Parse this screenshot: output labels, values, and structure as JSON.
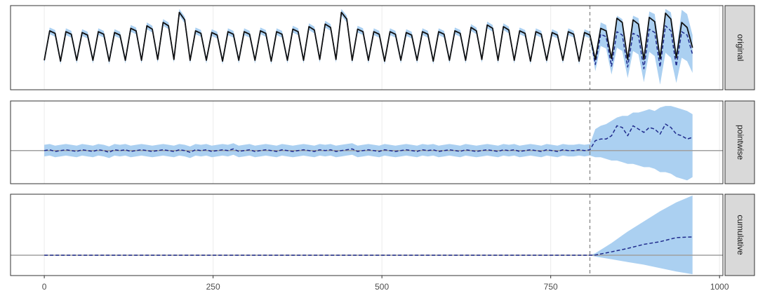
{
  "chart_data": [
    {
      "type": "line",
      "strip": "original",
      "xlim": [
        -50,
        1005
      ],
      "ylim": [
        0,
        10
      ],
      "vline": 808,
      "x": [
        0,
        8,
        16,
        24,
        32,
        40,
        48,
        56,
        64,
        72,
        80,
        88,
        96,
        104,
        112,
        120,
        128,
        136,
        144,
        152,
        160,
        168,
        176,
        184,
        192,
        200,
        208,
        216,
        224,
        232,
        240,
        248,
        256,
        264,
        272,
        280,
        288,
        296,
        304,
        312,
        320,
        328,
        336,
        344,
        352,
        360,
        368,
        376,
        384,
        392,
        400,
        408,
        416,
        424,
        432,
        440,
        448,
        456,
        464,
        472,
        480,
        488,
        496,
        504,
        512,
        520,
        528,
        536,
        544,
        552,
        560,
        568,
        576,
        584,
        592,
        600,
        608,
        616,
        624,
        632,
        640,
        648,
        656,
        664,
        672,
        680,
        688,
        696,
        704,
        712,
        720,
        728,
        736,
        744,
        752,
        760,
        768,
        776,
        784,
        792,
        800,
        808,
        816,
        824,
        832,
        840,
        848,
        856,
        864,
        872,
        880,
        888,
        896,
        904,
        912,
        920,
        928,
        936,
        944,
        952,
        960
      ],
      "band": {
        "color": "#abd0f1",
        "lower": [
          3.1,
          6.6,
          6.3,
          3.0,
          6.5,
          6.2,
          3.1,
          6.4,
          6.1,
          3.1,
          6.5,
          6.2,
          3.0,
          6.4,
          6.1,
          3.1,
          6.9,
          6.6,
          3.1,
          7.2,
          6.8,
          3.2,
          7.6,
          7.2,
          3.2,
          8.8,
          7.9,
          3.1,
          6.6,
          6.3,
          3.1,
          6.4,
          6.1,
          3.0,
          6.5,
          6.2,
          3.1,
          6.5,
          6.2,
          3.1,
          6.6,
          6.3,
          3.0,
          6.5,
          6.2,
          3.1,
          6.8,
          6.5,
          3.1,
          7.1,
          6.7,
          3.2,
          7.4,
          7.0,
          3.2,
          8.8,
          8.0,
          3.1,
          6.8,
          6.5,
          3.1,
          6.5,
          6.2,
          3.0,
          6.5,
          6.2,
          3.1,
          6.4,
          6.1,
          3.1,
          6.5,
          6.2,
          3.0,
          6.5,
          6.2,
          3.1,
          6.6,
          6.3,
          3.1,
          7.0,
          6.6,
          3.2,
          7.3,
          6.9,
          3.1,
          7.1,
          6.7,
          3.1,
          6.6,
          6.3,
          3.0,
          6.5,
          6.2,
          3.1,
          6.4,
          6.1,
          3.1,
          6.5,
          6.2,
          3.0,
          6.4,
          6.1,
          2.2,
          5.2,
          4.9,
          1.8,
          5.0,
          4.6,
          1.4,
          4.6,
          4.2,
          0.9,
          4.5,
          4.0,
          0.6,
          4.4,
          3.8,
          0.8,
          3.8,
          3.4,
          2.0
        ],
        "upper": [
          3.9,
          7.4,
          7.1,
          3.8,
          7.3,
          7.0,
          3.9,
          7.2,
          6.9,
          3.9,
          7.3,
          7.0,
          3.8,
          7.2,
          6.9,
          3.9,
          7.7,
          7.4,
          3.9,
          8.0,
          7.6,
          4.0,
          8.4,
          8.0,
          4.0,
          9.6,
          8.7,
          3.9,
          7.4,
          7.1,
          3.9,
          7.2,
          6.9,
          3.8,
          7.3,
          7.0,
          3.9,
          7.3,
          7.0,
          3.9,
          7.4,
          7.1,
          3.8,
          7.3,
          7.0,
          3.9,
          7.6,
          7.3,
          3.9,
          7.9,
          7.5,
          4.0,
          8.2,
          7.8,
          4.0,
          9.6,
          8.8,
          3.9,
          7.6,
          7.3,
          3.9,
          7.3,
          7.0,
          3.8,
          7.3,
          7.0,
          3.9,
          7.2,
          6.9,
          3.9,
          7.3,
          7.0,
          3.8,
          7.3,
          7.0,
          3.9,
          7.4,
          7.1,
          3.9,
          7.8,
          7.4,
          4.0,
          8.1,
          7.7,
          3.9,
          7.9,
          7.5,
          3.9,
          7.4,
          7.1,
          3.8,
          7.3,
          7.0,
          3.9,
          7.2,
          6.9,
          3.9,
          7.3,
          7.0,
          3.8,
          7.2,
          6.9,
          3.9,
          8.0,
          7.7,
          3.9,
          8.8,
          8.4,
          4.0,
          8.8,
          8.5,
          4.1,
          9.3,
          9.0,
          4.4,
          9.6,
          9.2,
          4.5,
          9.5,
          9.0,
          6.5
        ]
      },
      "series": [
        {
          "color": "#1f2a8c",
          "dash": true,
          "values": [
            3.5,
            7.0,
            6.7,
            3.4,
            6.9,
            6.6,
            3.5,
            6.8,
            6.5,
            3.5,
            6.9,
            6.6,
            3.4,
            6.8,
            6.5,
            3.5,
            7.3,
            7.0,
            3.5,
            7.6,
            7.2,
            3.6,
            8.0,
            7.6,
            3.6,
            9.2,
            8.3,
            3.5,
            7.0,
            6.7,
            3.5,
            6.8,
            6.5,
            3.4,
            6.9,
            6.6,
            3.5,
            6.9,
            6.6,
            3.5,
            7.0,
            6.7,
            3.4,
            6.9,
            6.6,
            3.5,
            7.2,
            6.9,
            3.5,
            7.5,
            7.1,
            3.6,
            7.8,
            7.4,
            3.6,
            9.2,
            8.4,
            3.5,
            7.2,
            6.9,
            3.5,
            6.9,
            6.6,
            3.4,
            6.9,
            6.6,
            3.5,
            6.8,
            6.5,
            3.5,
            6.9,
            6.6,
            3.4,
            6.9,
            6.6,
            3.5,
            7.0,
            6.7,
            3.5,
            7.4,
            7.0,
            3.6,
            7.7,
            7.3,
            3.5,
            7.5,
            7.1,
            3.5,
            7.0,
            6.7,
            3.4,
            6.9,
            6.6,
            3.5,
            6.8,
            6.5,
            3.5,
            6.9,
            6.6,
            3.4,
            6.8,
            6.5,
            3.0,
            6.6,
            6.3,
            2.8,
            6.9,
            6.5,
            2.7,
            6.7,
            6.4,
            2.5,
            7.2,
            6.8,
            2.7,
            7.6,
            7.0,
            2.8,
            6.9,
            6.5,
            4.2
          ]
        },
        {
          "color": "#111111",
          "dash": false,
          "values": [
            3.5,
            7.0,
            6.7,
            3.4,
            6.9,
            6.6,
            3.5,
            6.8,
            6.5,
            3.5,
            6.9,
            6.6,
            3.4,
            6.8,
            6.5,
            3.5,
            7.3,
            7.0,
            3.5,
            7.6,
            7.2,
            3.6,
            8.0,
            7.6,
            3.6,
            9.2,
            8.3,
            3.5,
            7.0,
            6.7,
            3.5,
            6.8,
            6.5,
            3.4,
            6.9,
            6.6,
            3.5,
            6.9,
            6.6,
            3.5,
            7.0,
            6.7,
            3.4,
            6.9,
            6.6,
            3.5,
            7.2,
            6.9,
            3.5,
            7.5,
            7.1,
            3.6,
            7.8,
            7.4,
            3.6,
            9.2,
            8.4,
            3.5,
            7.2,
            6.9,
            3.5,
            6.9,
            6.6,
            3.4,
            6.9,
            6.6,
            3.5,
            6.8,
            6.5,
            3.5,
            6.9,
            6.6,
            3.4,
            6.9,
            6.6,
            3.5,
            7.0,
            6.7,
            3.5,
            7.4,
            7.0,
            3.6,
            7.7,
            7.3,
            3.5,
            7.5,
            7.1,
            3.5,
            7.0,
            6.7,
            3.4,
            6.9,
            6.6,
            3.5,
            6.8,
            6.5,
            3.5,
            6.9,
            6.6,
            3.4,
            6.8,
            6.5,
            3.6,
            7.3,
            7.0,
            3.7,
            8.5,
            8.0,
            3.6,
            8.3,
            7.8,
            3.6,
            8.6,
            8.1,
            3.7,
            9.1,
            8.4,
            3.8,
            8.0,
            7.4,
            5.0
          ]
        }
      ]
    },
    {
      "type": "line",
      "strip": "pointwise",
      "xlim": [
        -50,
        1005
      ],
      "ylim": [
        -2,
        3
      ],
      "vline": 808,
      "hline": 0,
      "x": [
        0,
        8,
        16,
        24,
        32,
        40,
        48,
        56,
        64,
        72,
        80,
        88,
        96,
        104,
        112,
        120,
        128,
        136,
        144,
        152,
        160,
        168,
        176,
        184,
        192,
        200,
        208,
        216,
        224,
        232,
        240,
        248,
        256,
        264,
        272,
        280,
        288,
        296,
        304,
        312,
        320,
        328,
        336,
        344,
        352,
        360,
        368,
        376,
        384,
        392,
        400,
        408,
        416,
        424,
        432,
        440,
        448,
        456,
        464,
        472,
        480,
        488,
        496,
        504,
        512,
        520,
        528,
        536,
        544,
        552,
        560,
        568,
        576,
        584,
        592,
        600,
        608,
        616,
        624,
        632,
        640,
        648,
        656,
        664,
        672,
        680,
        688,
        696,
        704,
        712,
        720,
        728,
        736,
        744,
        752,
        760,
        768,
        776,
        784,
        792,
        800,
        808,
        816,
        824,
        832,
        840,
        848,
        856,
        864,
        872,
        880,
        888,
        896,
        904,
        912,
        920,
        928,
        936,
        944,
        952,
        960
      ],
      "band": {
        "color": "#abd0f1",
        "lower": [
          -0.35,
          -0.3,
          -0.4,
          -0.35,
          -0.3,
          -0.35,
          -0.4,
          -0.3,
          -0.35,
          -0.4,
          -0.3,
          -0.35,
          -0.45,
          -0.3,
          -0.35,
          -0.3,
          -0.4,
          -0.35,
          -0.3,
          -0.35,
          -0.4,
          -0.35,
          -0.3,
          -0.35,
          -0.4,
          -0.3,
          -0.35,
          -0.45,
          -0.3,
          -0.35,
          -0.3,
          -0.4,
          -0.35,
          -0.3,
          -0.35,
          -0.25,
          -0.4,
          -0.35,
          -0.3,
          -0.4,
          -0.35,
          -0.3,
          -0.35,
          -0.4,
          -0.3,
          -0.35,
          -0.4,
          -0.35,
          -0.3,
          -0.35,
          -0.4,
          -0.3,
          -0.35,
          -0.3,
          -0.4,
          -0.35,
          -0.3,
          -0.25,
          -0.4,
          -0.35,
          -0.3,
          -0.35,
          -0.4,
          -0.3,
          -0.35,
          -0.4,
          -0.35,
          -0.3,
          -0.35,
          -0.4,
          -0.3,
          -0.35,
          -0.3,
          -0.4,
          -0.35,
          -0.3,
          -0.35,
          -0.4,
          -0.3,
          -0.35,
          -0.4,
          -0.35,
          -0.3,
          -0.35,
          -0.4,
          -0.3,
          -0.35,
          -0.3,
          -0.4,
          -0.35,
          -0.3,
          -0.35,
          -0.4,
          -0.3,
          -0.35,
          -0.4,
          -0.3,
          -0.35,
          -0.35,
          -0.3,
          -0.35,
          -0.3,
          -0.4,
          -0.4,
          -0.5,
          -0.6,
          -0.6,
          -0.7,
          -0.8,
          -0.8,
          -0.9,
          -1.0,
          -1.0,
          -1.1,
          -1.3,
          -1.3,
          -1.4,
          -1.6,
          -1.7,
          -1.8,
          -1.6
        ],
        "upper": [
          0.35,
          0.4,
          0.3,
          0.35,
          0.4,
          0.35,
          0.3,
          0.4,
          0.35,
          0.3,
          0.4,
          0.35,
          0.25,
          0.4,
          0.35,
          0.4,
          0.3,
          0.35,
          0.4,
          0.35,
          0.3,
          0.35,
          0.4,
          0.35,
          0.3,
          0.4,
          0.35,
          0.25,
          0.4,
          0.35,
          0.4,
          0.3,
          0.35,
          0.4,
          0.35,
          0.45,
          0.3,
          0.35,
          0.4,
          0.3,
          0.35,
          0.4,
          0.35,
          0.3,
          0.4,
          0.35,
          0.3,
          0.35,
          0.4,
          0.35,
          0.3,
          0.4,
          0.35,
          0.4,
          0.3,
          0.35,
          0.4,
          0.45,
          0.3,
          0.35,
          0.4,
          0.35,
          0.3,
          0.4,
          0.35,
          0.3,
          0.35,
          0.4,
          0.35,
          0.3,
          0.4,
          0.35,
          0.4,
          0.3,
          0.35,
          0.4,
          0.35,
          0.3,
          0.4,
          0.35,
          0.3,
          0.35,
          0.4,
          0.35,
          0.3,
          0.4,
          0.35,
          0.4,
          0.3,
          0.35,
          0.4,
          0.35,
          0.3,
          0.4,
          0.35,
          0.3,
          0.4,
          0.35,
          0.35,
          0.4,
          0.35,
          0.4,
          1.3,
          1.5,
          1.6,
          1.8,
          2.0,
          2.1,
          2.1,
          2.3,
          2.3,
          2.4,
          2.5,
          2.4,
          2.6,
          2.7,
          2.7,
          2.6,
          2.5,
          2.4,
          2.2
        ]
      },
      "series": [
        {
          "color": "#1f2a8c",
          "dash": true,
          "values": [
            0,
            0.05,
            -0.05,
            0,
            0.05,
            0,
            -0.05,
            0.05,
            0,
            -0.05,
            0.05,
            0,
            -0.1,
            0.05,
            0,
            0.05,
            -0.05,
            0,
            0.05,
            0,
            -0.05,
            0,
            0.05,
            0,
            -0.05,
            0.05,
            0,
            -0.1,
            0.05,
            0,
            0.05,
            -0.05,
            0,
            0.05,
            0,
            0.1,
            -0.05,
            0,
            0.05,
            -0.05,
            0,
            0.05,
            0,
            -0.05,
            0.05,
            0,
            -0.05,
            0,
            0.05,
            0,
            -0.05,
            0.05,
            0,
            0.05,
            -0.05,
            0,
            0.05,
            0.1,
            -0.05,
            0,
            0.05,
            0,
            -0.05,
            0.05,
            0,
            -0.05,
            0,
            0.05,
            0,
            -0.05,
            0.05,
            0,
            0.05,
            -0.05,
            0,
            0.05,
            0,
            -0.05,
            0.05,
            0,
            -0.05,
            0,
            0.05,
            0,
            -0.05,
            0.05,
            0,
            0.05,
            -0.05,
            0,
            0.05,
            0,
            -0.05,
            0.05,
            0,
            -0.05,
            0.05,
            0,
            0,
            0.05,
            0,
            0.05,
            0.6,
            0.7,
            0.7,
            0.9,
            1.5,
            1.4,
            0.9,
            1.5,
            1.3,
            1.1,
            1.4,
            1.3,
            1.0,
            1.6,
            1.4,
            1.0,
            0.9,
            0.7,
            0.8
          ]
        }
      ]
    },
    {
      "type": "line",
      "strip": "cumulative",
      "xlim": [
        -50,
        1005
      ],
      "ylim": [
        -30,
        90
      ],
      "vline": 808,
      "hline": 0,
      "xticks": [
        0,
        250,
        500,
        750,
        1000
      ],
      "x": [
        0,
        808,
        816,
        840,
        864,
        888,
        912,
        936,
        960
      ],
      "band": {
        "color": "#abd0f1",
        "lower": [
          0,
          0,
          -2,
          -6,
          -10,
          -14,
          -19,
          -24,
          -28
        ],
        "upper": [
          0,
          0,
          3,
          18,
          35,
          50,
          65,
          78,
          88
        ]
      },
      "series": [
        {
          "color": "#1f2a8c",
          "dash": true,
          "values": [
            0,
            0,
            0.3,
            5,
            10,
            16,
            20,
            26,
            27
          ]
        }
      ]
    }
  ]
}
